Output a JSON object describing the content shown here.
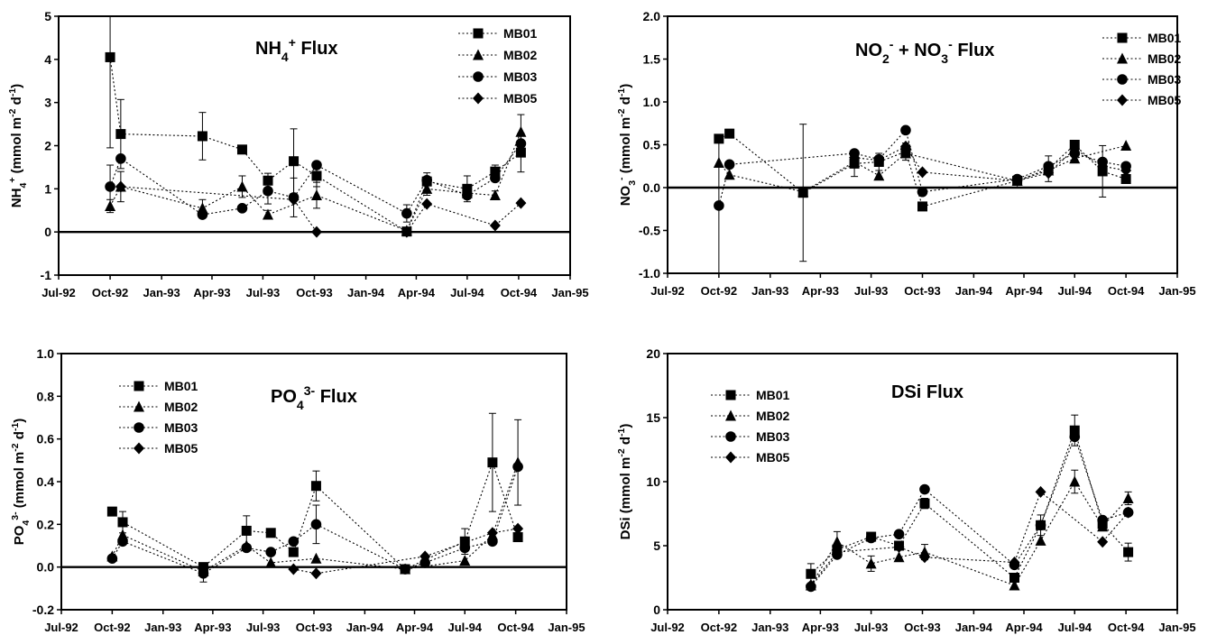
{
  "shared": {
    "x_ticks": [
      "Jul-92",
      "Oct-92",
      "Jan-93",
      "Apr-93",
      "Jul-93",
      "Oct-93",
      "Jan-94",
      "Apr-94",
      "Jul-94",
      "Oct-94",
      "Jan-95"
    ],
    "legend": [
      "MB01",
      "MB02",
      "MB03",
      "MB05"
    ],
    "markers": {
      "MB01": "square",
      "MB02": "triangle",
      "MB03": "circle",
      "MB05": "diamond"
    },
    "color": "#000000"
  },
  "chart_data": [
    {
      "type": "line",
      "title": "NH4+ Flux",
      "ylabel": "NH4+ (mmol m-2 d-1)",
      "xlim": [
        "Jul-92",
        "Jan-95"
      ],
      "ylim": [
        -1,
        5
      ],
      "yticks": [
        "-1",
        "0",
        "1",
        "2",
        "3",
        "4",
        "5"
      ],
      "legend_position": "top-right",
      "series": [
        {
          "name": "MB01",
          "x": [
            "1992-10-01",
            "1992-10-20",
            "1993-03-15",
            "1993-05-25",
            "1993-07-10",
            "1993-08-25",
            "1993-10-05",
            "1994-03-15",
            "1994-04-20",
            "1994-07-01",
            "1994-08-20",
            "1994-10-05"
          ],
          "y": [
            4.05,
            2.27,
            2.22,
            1.91,
            1.19,
            1.64,
            1.3,
            0.01,
            1.17,
            1.0,
            1.4,
            1.84
          ],
          "err": [
            2.1,
            0.8,
            0.55,
            0.05,
            0.17,
            0.75,
            0.25,
            0.0,
            0.2,
            0.3,
            0.15,
            0.45
          ]
        },
        {
          "name": "MB02",
          "x": [
            "1992-10-01",
            "1992-10-20",
            "1993-03-15",
            "1993-05-25",
            "1993-07-10",
            "1993-10-05",
            "1994-03-15",
            "1994-04-20",
            "1994-07-01",
            "1994-08-20",
            "1994-10-05"
          ],
          "y": [
            0.6,
            1.05,
            0.55,
            1.05,
            0.4,
            0.85,
            0.03,
            1.0,
            0.9,
            0.85,
            2.32
          ],
          "err": [
            0.15,
            0.35,
            0.2,
            0.25,
            0.1,
            0.3,
            0.0,
            0.15,
            0.1,
            0.1,
            0.4
          ]
        },
        {
          "name": "MB03",
          "x": [
            "1992-10-01",
            "1992-10-20",
            "1993-03-15",
            "1993-05-25",
            "1993-07-10",
            "1993-08-25",
            "1993-10-05",
            "1994-03-15",
            "1994-04-20",
            "1994-07-01",
            "1994-08-20",
            "1994-10-05"
          ],
          "y": [
            1.05,
            1.7,
            0.4,
            0.55,
            0.95,
            0.8,
            1.55,
            0.43,
            1.2,
            0.85,
            1.25,
            2.05
          ],
          "err": [
            0.5,
            0.0,
            0.0,
            0.0,
            0.3,
            0.45,
            0.0,
            0.2,
            0.0,
            0.0,
            0.0,
            0.0
          ]
        },
        {
          "name": "MB05",
          "x": [
            "1992-10-20",
            "1993-08-25",
            "1993-10-05",
            "1994-03-15",
            "1994-04-20",
            "1994-08-20",
            "1994-10-05"
          ],
          "y": [
            1.05,
            0.75,
            0.0,
            0.0,
            0.65,
            0.15,
            0.67
          ],
          "err": [
            0,
            0,
            0,
            0,
            0,
            0,
            0
          ]
        }
      ]
    },
    {
      "type": "line",
      "title": "NO2- + NO3- Flux",
      "ylabel": "NO3- (mmol m-2 d-1)",
      "xlim": [
        "Jul-92",
        "Jan-95"
      ],
      "ylim": [
        -1.0,
        2.0
      ],
      "yticks": [
        "-1.0",
        "-0.5",
        "0.0",
        "0.5",
        "1.0",
        "1.5",
        "2.0"
      ],
      "legend_position": "top-right",
      "series": [
        {
          "name": "MB01",
          "x": [
            "1992-10-01",
            "1992-10-20",
            "1993-03-01",
            "1993-06-01",
            "1993-07-15",
            "1993-09-01",
            "1993-10-01",
            "1994-03-20",
            "1994-05-15",
            "1994-07-01",
            "1994-08-20",
            "1994-10-01"
          ],
          "y": [
            0.57,
            0.63,
            -0.06,
            0.28,
            0.3,
            0.42,
            -0.22,
            0.08,
            0.22,
            0.5,
            0.19,
            0.1
          ],
          "err": [
            0.0,
            0.05,
            0.8,
            0.15,
            0.1,
            0.1,
            0.0,
            0.05,
            0.15,
            0.05,
            0.3,
            0.05
          ]
        },
        {
          "name": "MB02",
          "x": [
            "1992-10-01",
            "1992-10-20",
            "1993-03-01",
            "1993-06-01",
            "1993-07-15",
            "1993-09-01",
            "1994-03-20",
            "1994-05-15",
            "1994-07-01",
            "1994-10-01"
          ],
          "y": [
            0.29,
            0.15,
            -0.05,
            0.3,
            0.14,
            0.4,
            0.08,
            0.2,
            0.34,
            0.49
          ],
          "err": [
            0,
            0,
            0,
            0,
            0,
            0,
            0,
            0,
            0,
            0
          ]
        },
        {
          "name": "MB03",
          "x": [
            "1992-10-01",
            "1992-10-20",
            "1993-06-01",
            "1993-07-15",
            "1993-09-01",
            "1993-10-01",
            "1994-03-20",
            "1994-05-15",
            "1994-07-01",
            "1994-08-20",
            "1994-10-01"
          ],
          "y": [
            -0.21,
            0.27,
            0.4,
            0.33,
            0.67,
            -0.05,
            0.1,
            0.25,
            0.4,
            0.3,
            0.25
          ],
          "err": [
            0.8,
            0,
            0,
            0,
            0,
            0,
            0,
            0,
            0,
            0,
            0
          ]
        },
        {
          "name": "MB05",
          "x": [
            "1993-06-01",
            "1993-07-15",
            "1993-09-01",
            "1993-10-01",
            "1994-03-20",
            "1994-05-15",
            "1994-07-01",
            "1994-08-20",
            "1994-10-01"
          ],
          "y": [
            0.35,
            0.32,
            0.48,
            0.18,
            0.08,
            0.17,
            0.45,
            0.25,
            0.2
          ],
          "err": [
            0,
            0,
            0,
            0,
            0,
            0,
            0,
            0,
            0
          ]
        }
      ]
    },
    {
      "type": "line",
      "title": "PO43- Flux",
      "ylabel": "PO43- (mmol m-2 d-1)",
      "xlim": [
        "Jul-92",
        "Jan-95"
      ],
      "ylim": [
        -0.2,
        1.0
      ],
      "yticks": [
        "-0.2",
        "0.0",
        "0.2",
        "0.4",
        "0.6",
        "0.8",
        "1.0"
      ],
      "legend_position": "top-left",
      "series": [
        {
          "name": "MB01",
          "x": [
            "1992-10-01",
            "1992-10-20",
            "1993-03-15",
            "1993-06-01",
            "1993-07-15",
            "1993-08-25",
            "1993-10-05",
            "1994-03-15",
            "1994-07-01",
            "1994-08-20",
            "1994-10-05"
          ],
          "y": [
            0.26,
            0.21,
            0.0,
            0.17,
            0.16,
            0.07,
            0.38,
            -0.01,
            0.12,
            0.49,
            0.14
          ],
          "err": [
            0.0,
            0.05,
            0.0,
            0.07,
            0.0,
            0.0,
            0.07,
            0.0,
            0.06,
            0.23,
            0.0
          ]
        },
        {
          "name": "MB02",
          "x": [
            "1992-10-01",
            "1992-10-20",
            "1993-03-15",
            "1993-06-01",
            "1993-07-15",
            "1993-10-05",
            "1994-03-15",
            "1994-07-01",
            "1994-08-20",
            "1994-10-05"
          ],
          "y": [
            0.05,
            0.15,
            -0.02,
            0.1,
            0.02,
            0.04,
            -0.01,
            0.03,
            0.15,
            0.49
          ],
          "err": [
            0,
            0,
            0,
            0,
            0,
            0,
            0,
            0,
            0,
            0.2
          ]
        },
        {
          "name": "MB03",
          "x": [
            "1992-10-01",
            "1992-10-20",
            "1993-03-15",
            "1993-06-01",
            "1993-07-15",
            "1993-08-25",
            "1993-10-05",
            "1994-03-15",
            "1994-04-20",
            "1994-07-01",
            "1994-08-20",
            "1994-10-05"
          ],
          "y": [
            0.04,
            0.12,
            -0.03,
            0.09,
            0.07,
            0.12,
            0.2,
            -0.01,
            0.02,
            0.09,
            0.12,
            0.47
          ],
          "err": [
            0.0,
            0.0,
            0.04,
            0.0,
            0.0,
            0.0,
            0.09,
            0.0,
            0.0,
            0.0,
            0.0,
            0.0
          ]
        },
        {
          "name": "MB05",
          "x": [
            "1993-08-25",
            "1993-10-05",
            "1994-04-20",
            "1994-08-20",
            "1994-10-05"
          ],
          "y": [
            -0.01,
            -0.03,
            0.05,
            0.16,
            0.18
          ],
          "err": [
            0,
            0,
            0,
            0,
            0
          ]
        }
      ]
    },
    {
      "type": "line",
      "title": "DSi Flux",
      "ylabel": "DSi (mmol m-2 d-1)",
      "xlim": [
        "Jul-92",
        "Jan-95"
      ],
      "ylim": [
        0,
        20
      ],
      "yticks": [
        "0",
        "5",
        "10",
        "15",
        "20"
      ],
      "legend_position": "top-left",
      "series": [
        {
          "name": "MB01",
          "x": [
            "1993-03-15",
            "1993-05-01",
            "1993-07-01",
            "1993-08-20",
            "1993-10-05",
            "1994-03-15",
            "1994-05-01",
            "1994-07-01",
            "1994-08-20",
            "1994-10-05"
          ],
          "y": [
            2.8,
            4.7,
            5.7,
            5.0,
            8.3,
            2.5,
            6.6,
            14.0,
            6.7,
            4.5
          ],
          "err": [
            0.8,
            0.0,
            0.3,
            0.3,
            0.4,
            0.0,
            0.8,
            1.2,
            0.0,
            0.7
          ]
        },
        {
          "name": "MB02",
          "x": [
            "1993-03-15",
            "1993-05-01",
            "1993-07-01",
            "1993-08-20",
            "1993-10-05",
            "1994-03-15",
            "1994-05-01",
            "1994-07-01",
            "1994-08-20",
            "1994-10-05"
          ],
          "y": [
            1.9,
            5.3,
            3.6,
            4.1,
            4.5,
            1.9,
            5.4,
            10.0,
            6.5,
            8.7
          ],
          "err": [
            0,
            0.8,
            0.6,
            0,
            0.6,
            0,
            0,
            0.9,
            0,
            0.5
          ]
        },
        {
          "name": "MB03",
          "x": [
            "1993-03-15",
            "1993-05-01",
            "1993-07-01",
            "1993-08-20",
            "1993-10-05",
            "1994-03-15",
            "1994-05-01",
            "1994-07-01",
            "1994-08-20",
            "1994-10-05"
          ],
          "y": [
            1.8,
            4.3,
            5.6,
            5.9,
            9.4,
            3.5,
            6.6,
            13.5,
            7.0,
            7.6
          ],
          "err": [
            0,
            0,
            0,
            0,
            0,
            0,
            0,
            0,
            0,
            0
          ]
        },
        {
          "name": "MB05",
          "x": [
            "1993-03-15",
            "1993-05-01",
            "1993-08-20",
            "1993-10-05",
            "1994-03-15",
            "1994-05-01",
            "1994-08-20",
            "1994-10-05"
          ],
          "y": [
            1.9,
            4.5,
            4.9,
            4.1,
            3.7,
            9.2,
            5.3,
            7.6
          ],
          "err": [
            0,
            0,
            0,
            0,
            0,
            0,
            0,
            0
          ]
        }
      ]
    }
  ]
}
